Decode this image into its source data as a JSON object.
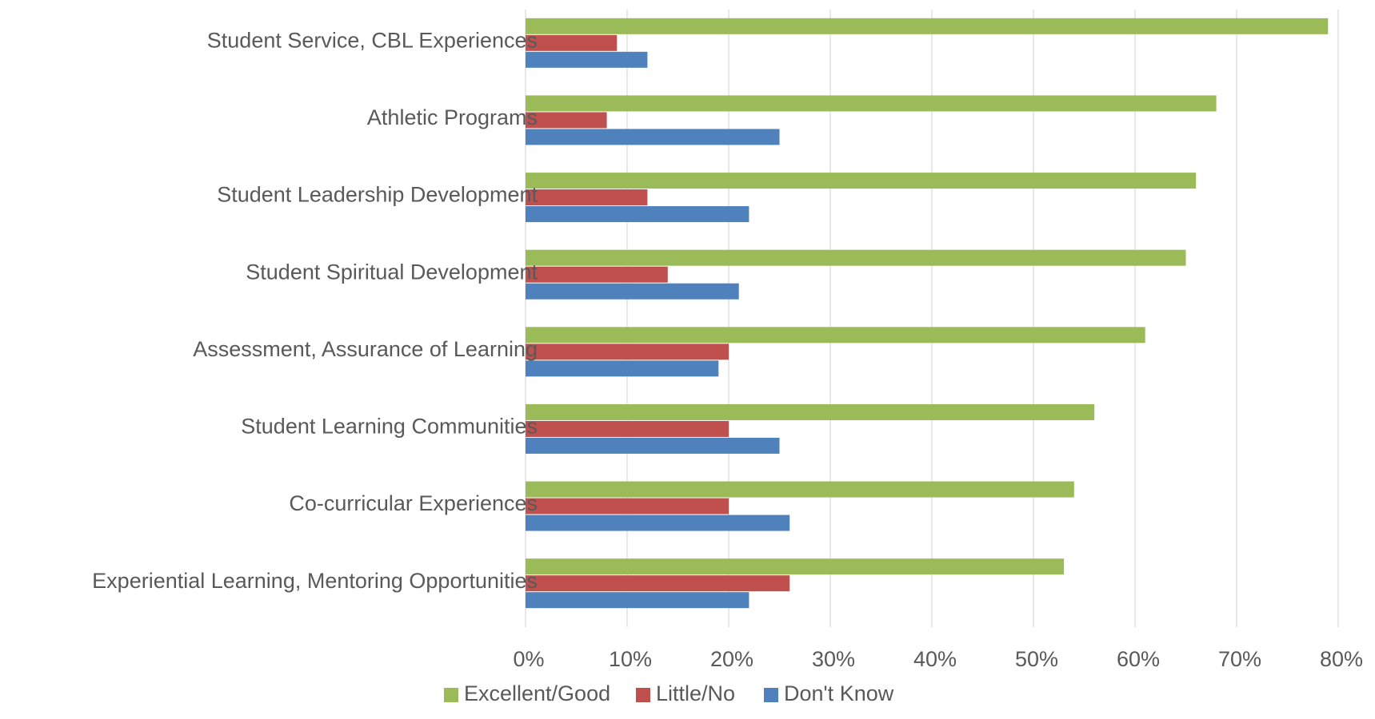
{
  "chart_data": {
    "type": "bar",
    "orientation": "horizontal",
    "categories": [
      "Student Service, CBL Experiences",
      "Athletic Programs",
      "Student Leadership Development",
      "Student Spiritual Development",
      "Assessment, Assurance of Learning",
      "Student Learning Communities",
      "Co-curricular Experiences",
      "Experiential Learning, Mentoring Opportunities"
    ],
    "series": [
      {
        "name": "Excellent/Good",
        "color": "#9bbb59",
        "values": [
          79,
          68,
          66,
          65,
          61,
          56,
          54,
          53
        ]
      },
      {
        "name": "Little/No",
        "color": "#c0504d",
        "values": [
          9,
          8,
          12,
          14,
          20,
          20,
          20,
          26
        ]
      },
      {
        "name": "Don't Know",
        "color": "#4f81bd",
        "values": [
          12,
          25,
          22,
          21,
          19,
          25,
          26,
          22
        ]
      }
    ],
    "xlim": [
      0,
      80
    ],
    "xticks": [
      {
        "value": 0,
        "label": "0%"
      },
      {
        "value": 10,
        "label": "10%"
      },
      {
        "value": 20,
        "label": "20%"
      },
      {
        "value": 30,
        "label": "30%"
      },
      {
        "value": 40,
        "label": "40%"
      },
      {
        "value": 50,
        "label": "50%"
      },
      {
        "value": 60,
        "label": "60%"
      },
      {
        "value": 70,
        "label": "70%"
      },
      {
        "value": 80,
        "label": "80%"
      }
    ],
    "grid": true,
    "legend": "bottom"
  }
}
